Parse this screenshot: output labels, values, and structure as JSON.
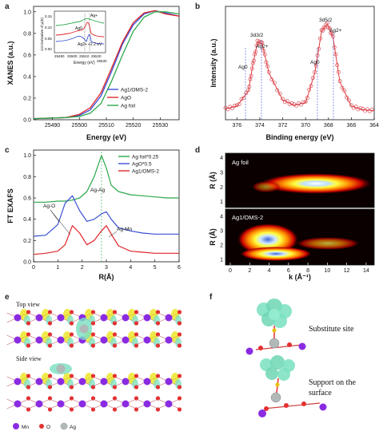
{
  "chart_data": [
    {
      "panel": "a",
      "type": "line",
      "xlabel": "Energy (eV)",
      "ylabel": "XANES (a.u.)",
      "xlim": [
        25483,
        25537
      ],
      "ylim": [
        0.0,
        1.05
      ],
      "xticks": [
        "25490",
        "25500",
        "25510",
        "25520",
        "25530"
      ],
      "yticks": [
        "0.0",
        "0.2",
        "0.4",
        "0.6",
        "0.8",
        "1.0"
      ],
      "legend": [
        "Ag1/OMS-2",
        "AgO",
        "Ag foil"
      ],
      "legend_position": "bottom-right",
      "colors": [
        "#3a4fd6",
        "#e0262a",
        "#2aa84a"
      ],
      "x": [
        25483,
        25495,
        25500,
        25504,
        25508,
        25512,
        25516,
        25520,
        25524,
        25528,
        25532,
        25537
      ],
      "series": [
        {
          "name": "Ag1/OMS-2",
          "values": [
            0.01,
            0.02,
            0.04,
            0.09,
            0.22,
            0.45,
            0.7,
            0.88,
            0.98,
            1.01,
            0.99,
            0.96
          ]
        },
        {
          "name": "AgO",
          "values": [
            0.01,
            0.02,
            0.05,
            0.11,
            0.25,
            0.48,
            0.72,
            0.9,
            0.99,
            1.01,
            0.98,
            0.96
          ]
        },
        {
          "name": "Ag foil",
          "values": [
            0.01,
            0.02,
            0.03,
            0.06,
            0.15,
            0.36,
            0.6,
            0.82,
            0.95,
            1.0,
            1.0,
            0.98
          ]
        }
      ],
      "inset": {
        "ylabel": "1st Derivative of μ(E)",
        "xlabel": "Energy (eV)",
        "xticks": [
          "25490",
          "25500",
          "25510",
          "25520",
          "25530"
        ],
        "yticks": [
          "0.00",
          "0.05",
          "0.10",
          "0.15"
        ],
        "annotations": [
          "Ag+",
          "Ag0",
          "Ag2+",
          "+2.2 eV"
        ]
      }
    },
    {
      "panel": "b",
      "type": "line",
      "xlabel": "Binding energy (eV)",
      "ylabel": "Intensity (a.u.)",
      "xlim": [
        377,
        364
      ],
      "xticks": [
        "376",
        "374",
        "372",
        "370",
        "368",
        "366",
        "364"
      ],
      "annotations": [
        "3d3/2",
        "3d5/2",
        "Ag2+",
        "Ag2+",
        "Ag0",
        "Ag0"
      ],
      "x": [
        377,
        376,
        375,
        374.6,
        374.2,
        373.8,
        373.2,
        372,
        371,
        370,
        369.2,
        368.6,
        368.1,
        367.6,
        367,
        366,
        365,
        364
      ],
      "values": [
        0.05,
        0.08,
        0.25,
        0.55,
        0.8,
        0.78,
        0.45,
        0.15,
        0.09,
        0.12,
        0.45,
        0.92,
        1.0,
        0.85,
        0.35,
        0.08,
        0.04,
        0.03
      ]
    },
    {
      "panel": "c",
      "type": "line",
      "xlabel": "R(Å)",
      "ylabel": "FT EXAFS",
      "xlim": [
        0,
        6
      ],
      "ylim": [
        0.0,
        1.05
      ],
      "xticks": [
        "0",
        "1",
        "2",
        "3",
        "4",
        "5",
        "6"
      ],
      "yticks": [
        "0.0",
        "0.2",
        "0.4",
        "0.6",
        "0.8",
        "1.0"
      ],
      "legend": [
        "Ag foil*0.25",
        "AgO*0.5",
        "Ag1/OMS-2"
      ],
      "legend_position": "top-right",
      "annotations": [
        "Ag-Ag",
        "Ag-O",
        "Ag-Mn"
      ],
      "x": [
        0.0,
        0.5,
        1.0,
        1.3,
        1.6,
        1.9,
        2.2,
        2.5,
        2.8,
        3.0,
        3.2,
        3.5,
        4.0,
        4.5,
        5.0,
        5.5,
        6.0
      ],
      "series": [
        {
          "name": "Ag foil*0.25",
          "values": [
            0.56,
            0.56,
            0.57,
            0.57,
            0.58,
            0.6,
            0.66,
            0.8,
            1.0,
            0.88,
            0.72,
            0.66,
            0.63,
            0.62,
            0.61,
            0.6,
            0.6
          ]
        },
        {
          "name": "AgO*0.5",
          "values": [
            0.24,
            0.25,
            0.35,
            0.55,
            0.62,
            0.48,
            0.38,
            0.4,
            0.45,
            0.47,
            0.4,
            0.32,
            0.29,
            0.27,
            0.26,
            0.26,
            0.26
          ]
        },
        {
          "name": "Ag1/OMS-2",
          "values": [
            0.07,
            0.08,
            0.1,
            0.16,
            0.34,
            0.27,
            0.16,
            0.2,
            0.29,
            0.34,
            0.26,
            0.15,
            0.1,
            0.09,
            0.08,
            0.08,
            0.08
          ]
        }
      ]
    },
    {
      "panel": "d",
      "type": "heatmap",
      "xlabel": "k (Å⁻¹)",
      "ylabel": "R (Å)",
      "xticks": [
        "0",
        "2",
        "4",
        "6",
        "8",
        "10",
        "12",
        "14"
      ],
      "yticks": [
        "1",
        "2",
        "3",
        "4"
      ],
      "subplots": [
        "Ag foil",
        "Ag1/OMS-2"
      ]
    }
  ],
  "panel_e": {
    "top_label": "Top view",
    "side_label": "Side view",
    "legend": [
      "Mn",
      "O",
      "Ag"
    ]
  },
  "panel_f": {
    "label1": "Substitute site",
    "label2": "Support on the surface"
  },
  "letters": [
    "a",
    "b",
    "c",
    "d",
    "e",
    "f"
  ],
  "colors": {
    "blue": "#3a4fd6",
    "red": "#e0262a",
    "green": "#2aa84a",
    "xps": "#d8505a",
    "mn": "#8a2be2",
    "o": "#e53030",
    "ag": "#b0b8b8",
    "iso": "#78e0c0"
  }
}
